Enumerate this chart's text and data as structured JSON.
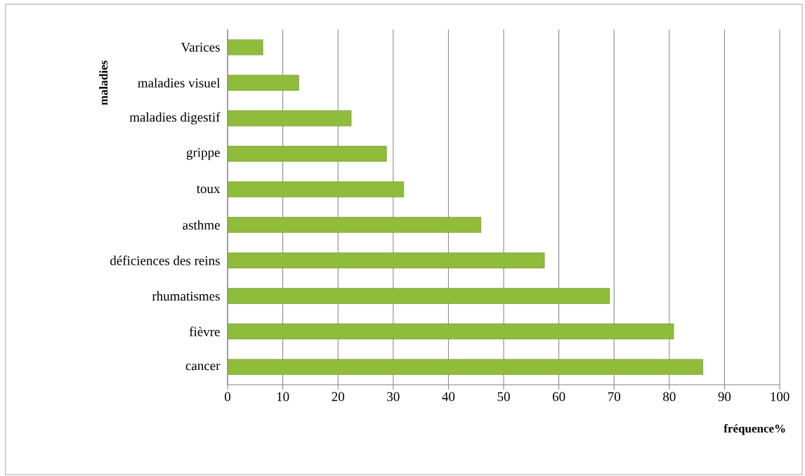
{
  "chart_data": {
    "type": "bar",
    "orientation": "horizontal",
    "xlabel": "fréquence%",
    "ylabel": "maladies",
    "categories": [
      "Varices",
      "maladies visuel",
      "maladies  digestif",
      "grippe",
      "toux",
      "asthme",
      "déficiences des reins",
      "rhumatismes",
      "fièvre",
      "cancer"
    ],
    "values": [
      6.4,
      12.9,
      22.4,
      28.8,
      31.9,
      45.9,
      57.4,
      69.2,
      80.8,
      86.1
    ],
    "color": "#8fbc3a",
    "xlim": [
      0,
      100
    ],
    "xticks": [
      0,
      10,
      20,
      30,
      40,
      50,
      60,
      70,
      80,
      90,
      100
    ],
    "grid": "x"
  }
}
